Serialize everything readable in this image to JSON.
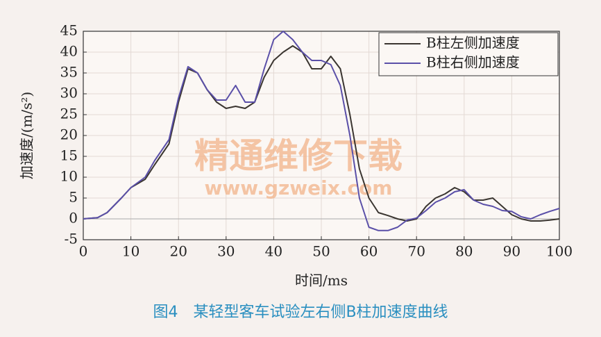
{
  "chart_data": {
    "type": "line",
    "caption": "图4　某轻型客车试验左右侧B柱加速度曲线",
    "xlabel": "时间/ms",
    "ylabel": "加速度/(m/s²)",
    "watermark": [
      "精通维修下载",
      "www.gzweix.com"
    ],
    "x": [
      0,
      3,
      5,
      8,
      10,
      13,
      15,
      18,
      20,
      22,
      24,
      26,
      28,
      30,
      32,
      34,
      36,
      38,
      40,
      42,
      44,
      46,
      48,
      50,
      52,
      54,
      56,
      58,
      60,
      62,
      64,
      66,
      68,
      70,
      72,
      74,
      76,
      78,
      80,
      82,
      84,
      86,
      88,
      90,
      92,
      94,
      96,
      98,
      100
    ],
    "series": [
      {
        "name": "B柱左侧加速度",
        "color": "#3a3530",
        "values": [
          0,
          0.3,
          1.5,
          5,
          7.5,
          9.5,
          13,
          18,
          28,
          36,
          35,
          31,
          28,
          26.5,
          27,
          26.5,
          28,
          34,
          38,
          40,
          41.5,
          40,
          36,
          36,
          39,
          36,
          25,
          12,
          5,
          1.5,
          0.8,
          0,
          -0.5,
          0,
          3,
          5,
          6,
          7.5,
          6.5,
          4.5,
          4.5,
          5,
          3,
          1,
          0,
          -0.5,
          -0.5,
          -0.3,
          0
        ]
      },
      {
        "name": "B柱右侧加速度",
        "color": "#5a4fa8",
        "values": [
          0,
          0.3,
          1.5,
          5,
          7.5,
          10,
          14,
          19,
          29,
          36.5,
          35,
          31,
          28.5,
          28.5,
          32,
          28,
          28,
          36,
          43,
          45,
          43,
          40,
          38,
          38,
          37,
          32,
          20,
          5,
          -2,
          -2.8,
          -2.8,
          -2,
          -0.3,
          0.2,
          2,
          4,
          5,
          6.5,
          7,
          4.5,
          3.5,
          3,
          2,
          1.8,
          0.5,
          0,
          1,
          1.8,
          2.5
        ]
      }
    ],
    "xlim": [
      0,
      100
    ],
    "xticks": [
      0,
      10,
      20,
      30,
      40,
      50,
      60,
      70,
      80,
      90,
      100
    ],
    "ylim": [
      -5,
      45
    ],
    "yticks": [
      -5,
      0,
      5,
      10,
      15,
      20,
      25,
      30,
      35,
      40,
      45
    ],
    "grid": true,
    "legend": "upper right"
  }
}
